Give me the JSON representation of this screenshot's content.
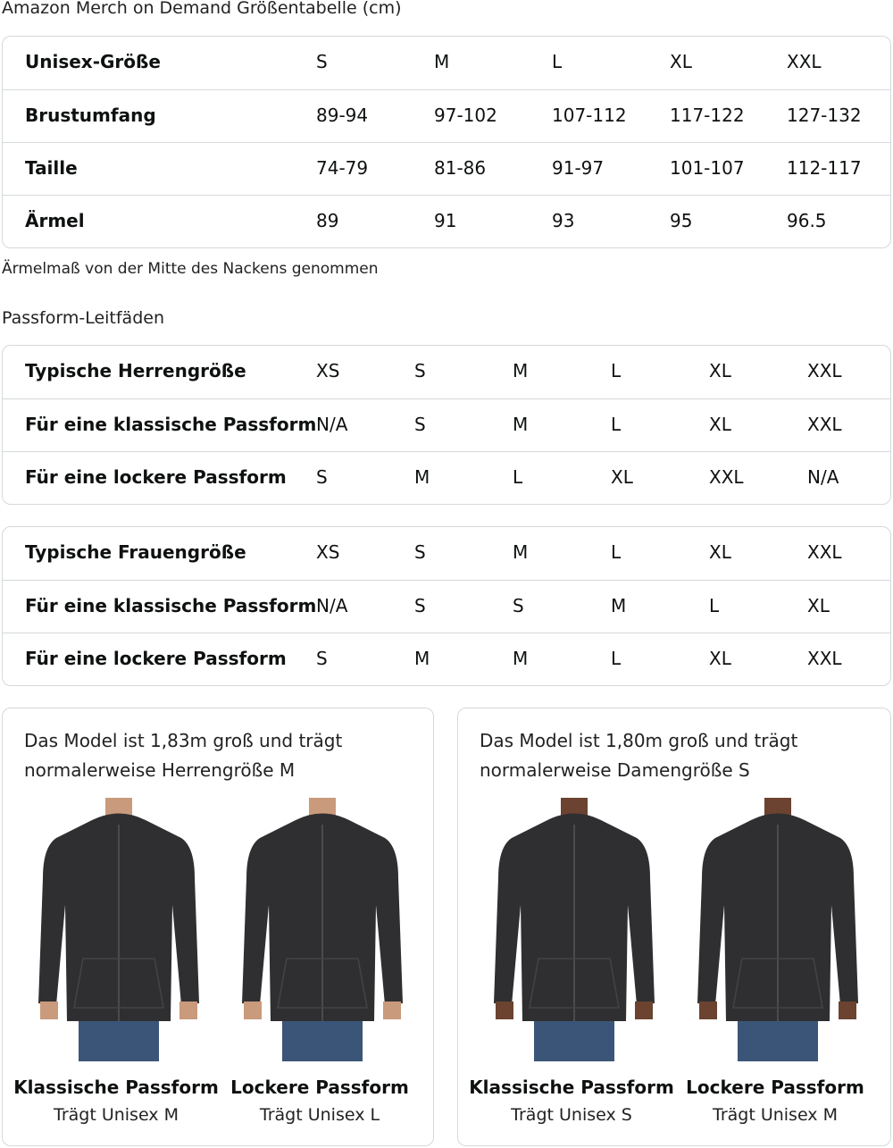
{
  "title": "Amazon Merch on Demand Größentabelle (cm)",
  "unisex_table": [
    [
      "Unisex-Größe",
      "S",
      "M",
      "L",
      "XL",
      "XXL"
    ],
    [
      "Brustumfang",
      "89-94",
      "97-102",
      "107-112",
      "117-122",
      "127-132"
    ],
    [
      "Taille",
      "74-79",
      "81-86",
      "91-97",
      "101-107",
      "112-117"
    ],
    [
      "Ärmel",
      "89",
      "91",
      "93",
      "95",
      "96.5"
    ]
  ],
  "note": "Ärmelmaß von der Mitte des Nackens genommen",
  "fit_title": "Passform-Leitfäden",
  "men_table": [
    [
      "Typische Herrengröße",
      "XS",
      "S",
      "M",
      "L",
      "XL",
      "XXL"
    ],
    [
      "Für eine klassische Passform",
      "N/A",
      "S",
      "M",
      "L",
      "XL",
      "XXL"
    ],
    [
      "Für eine lockere Passform",
      "S",
      "M",
      "L",
      "XL",
      "XXL",
      "N/A"
    ]
  ],
  "women_table": [
    [
      "Typische Frauengröße",
      "XS",
      "S",
      "M",
      "L",
      "XL",
      "XXL"
    ],
    [
      "Für eine klassische Passform",
      "N/A",
      "S",
      "S",
      "M",
      "L",
      "XL"
    ],
    [
      "Für eine lockere Passform",
      "S",
      "M",
      "M",
      "L",
      "XL",
      "XXL"
    ]
  ],
  "cards": [
    {
      "text": "Das Model ist 1,83m groß und trägt normalerweise Herrengröße M",
      "figures": [
        {
          "title": "Klassische Passform",
          "sub": "Trägt Unisex M",
          "skin": "#c99a7c"
        },
        {
          "title": "Lockere Passform",
          "sub": "Trägt Unisex L",
          "skin": "#c99a7c"
        }
      ]
    },
    {
      "text": "Das Model ist 1,80m groß und trägt normalerweise Damengröße S",
      "figures": [
        {
          "title": "Klassische Passform",
          "sub": "Trägt Unisex S",
          "skin": "#6b4330"
        },
        {
          "title": "Lockere Passform",
          "sub": "Trägt Unisex M",
          "skin": "#6b4330"
        }
      ]
    }
  ],
  "colors": {
    "hoodie": "#2f2f31",
    "jeans": "#3b5578",
    "border": "#d5d9d9"
  }
}
